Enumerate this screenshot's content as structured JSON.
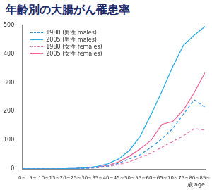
{
  "chart_data": {
    "type": "line",
    "title": "年齢別の大腸がん罹患率",
    "x_label": "歳 age",
    "categories": [
      "0~",
      "5~",
      "10~",
      "15~",
      "20~",
      "25~",
      "30~",
      "35~",
      "40~",
      "45~",
      "50~",
      "55~",
      "60~",
      "65~",
      "70~",
      "75~",
      "80~",
      "85~"
    ],
    "series": [
      {
        "name": "1980 (男性 males)",
        "color": "#3399ee",
        "line_style": "dashed",
        "marker": "none",
        "values": [
          0,
          0,
          0,
          0,
          0,
          1,
          2,
          5,
          10,
          20,
          35,
          50,
          75,
          105,
          140,
          190,
          240,
          215
        ]
      },
      {
        "name": "2005 (男性 males)",
        "color": "#29aee6",
        "line_style": "solid",
        "marker": "none",
        "values": [
          0,
          0,
          0,
          0,
          1,
          2,
          4,
          9,
          18,
          35,
          65,
          115,
          190,
          270,
          355,
          430,
          465,
          495
        ]
      },
      {
        "name": "1980 (女性 females)",
        "color": "#e77fb3",
        "line_style": "dashed",
        "marker": "none",
        "values": [
          0,
          0,
          0,
          0,
          0,
          1,
          2,
          4,
          8,
          15,
          25,
          40,
          55,
          75,
          95,
          115,
          140,
          135
        ]
      },
      {
        "name": "2005 (女性 females)",
        "color": "#ee6699",
        "line_style": "solid",
        "marker": "none",
        "values": [
          0,
          0,
          0,
          0,
          1,
          2,
          4,
          7,
          12,
          25,
          45,
          70,
          100,
          155,
          165,
          205,
          265,
          335
        ]
      }
    ],
    "ylim": [
      0,
      500
    ],
    "yticks": [
      0,
      100,
      200,
      300,
      400,
      500
    ],
    "grid": false,
    "legend": "upper left"
  }
}
